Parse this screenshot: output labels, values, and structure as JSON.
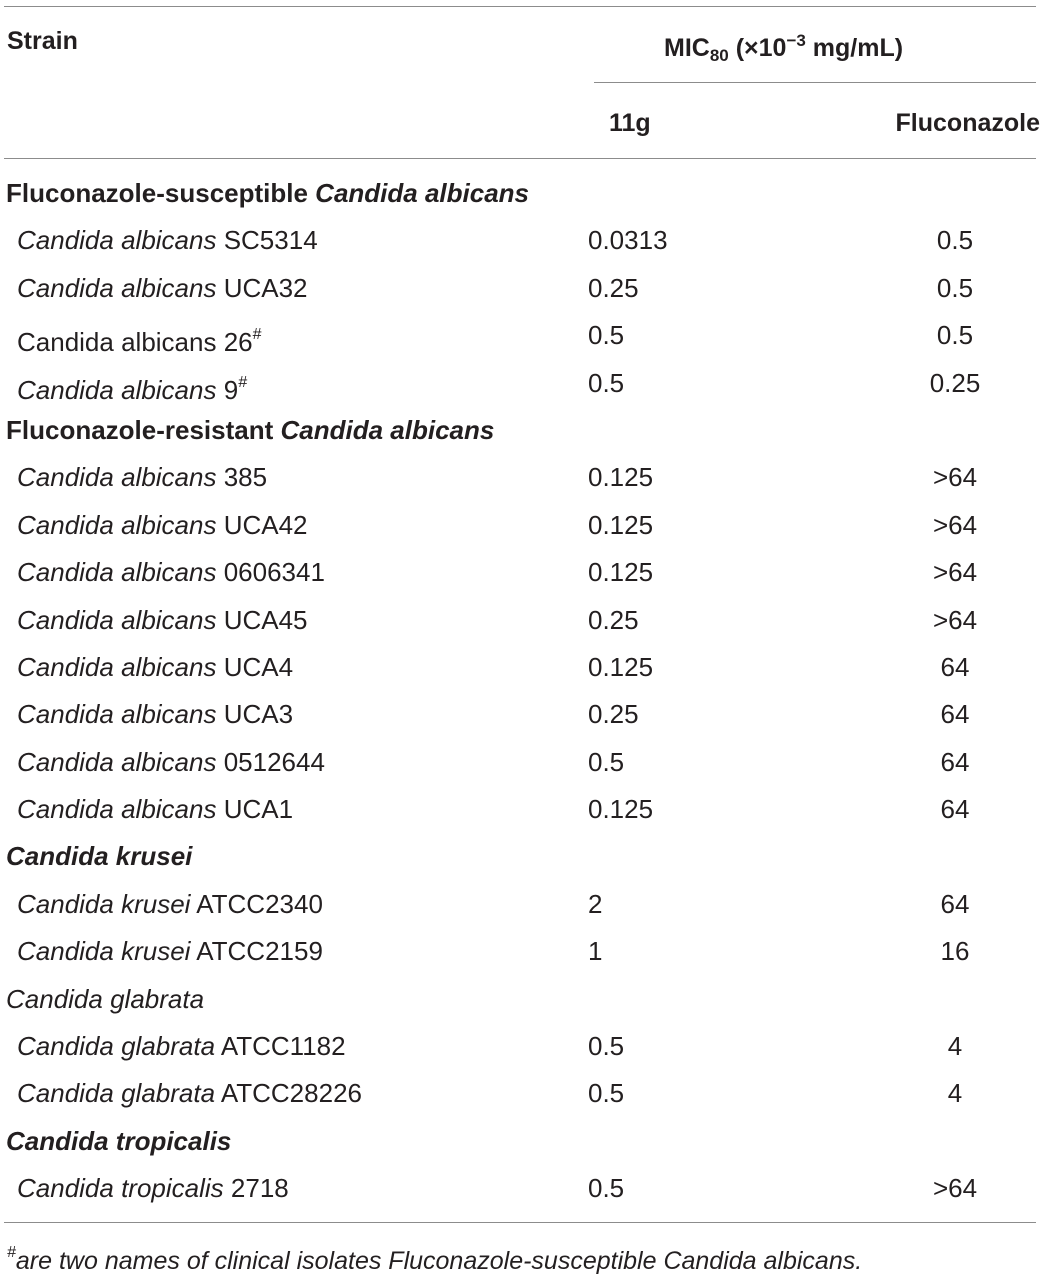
{
  "header": {
    "strain": "Strain",
    "mic_prefix": "MIC",
    "mic_sub": "80",
    "mic_mid": " (×10",
    "mic_sup": "−3",
    "mic_suffix": " mg/mL)",
    "col_11g": "11g",
    "col_fluconazole": "Fluconazole"
  },
  "groups": [
    {
      "label_plain": "Fluconazole-susceptible ",
      "label_italic": "Candida albicans",
      "style": "bold",
      "rows": [
        {
          "genus": "Candida albicans",
          "id": " SC5314",
          "italic": true,
          "mark": "",
          "v11g": "0.0313",
          "vfluc": "0.5"
        },
        {
          "genus": "Candida albicans",
          "id": " UCA32",
          "italic": true,
          "mark": "",
          "v11g": "0.25",
          "vfluc": "0.5"
        },
        {
          "genus": "Candida albicans",
          "id": " 26",
          "italic": false,
          "mark": "#",
          "v11g": "0.5",
          "vfluc": "0.5"
        },
        {
          "genus": "Candida albicans",
          "id": " 9",
          "italic": true,
          "mark": "#",
          "v11g": "0.5",
          "vfluc": "0.25"
        }
      ]
    },
    {
      "label_plain": "Fluconazole-resistant ",
      "label_italic": "Candida albicans",
      "style": "bold",
      "rows": [
        {
          "genus": "Candida albicans",
          "id": " 385",
          "italic": true,
          "mark": "",
          "v11g": "0.125",
          "vfluc": ">64"
        },
        {
          "genus": "Candida albicans",
          "id": " UCA42",
          "italic": true,
          "mark": "",
          "v11g": "0.125",
          "vfluc": ">64"
        },
        {
          "genus": "Candida albicans",
          "id": " 0606341",
          "italic": true,
          "mark": "",
          "v11g": "0.125",
          "vfluc": ">64"
        },
        {
          "genus": "Candida albicans",
          "id": " UCA45",
          "italic": true,
          "mark": "",
          "v11g": "0.25",
          "vfluc": ">64"
        },
        {
          "genus": "Candida albicans",
          "id": " UCA4",
          "italic": true,
          "mark": "",
          "v11g": "0.125",
          "vfluc": "64"
        },
        {
          "genus": "Candida albicans",
          "id": " UCA3",
          "italic": true,
          "mark": "",
          "v11g": "0.25",
          "vfluc": "64"
        },
        {
          "genus": "Candida albicans",
          "id": " 0512644",
          "italic": true,
          "mark": "",
          "v11g": "0.5",
          "vfluc": "64"
        },
        {
          "genus": "Candida albicans",
          "id": " UCA1",
          "italic": true,
          "mark": "",
          "v11g": "0.125",
          "vfluc": "64"
        }
      ]
    },
    {
      "label_plain": "",
      "label_italic": "Candida krusei",
      "style": "bold",
      "rows": [
        {
          "genus": "Candida krusei",
          "id": " ATCC2340",
          "italic": true,
          "mark": "",
          "v11g": "2",
          "vfluc": "64"
        },
        {
          "genus": "Candida krusei",
          "id": " ATCC2159",
          "italic": true,
          "mark": "",
          "v11g": "1",
          "vfluc": "16"
        }
      ]
    },
    {
      "label_plain": "",
      "label_italic": "Candida glabrata",
      "style": "plain-italic",
      "rows": [
        {
          "genus": "Candida glabrata",
          "id": " ATCC1182",
          "italic": true,
          "mark": "",
          "v11g": "0.5",
          "vfluc": "4"
        },
        {
          "genus": "Candida glabrata",
          "id": " ATCC28226",
          "italic": true,
          "mark": "",
          "v11g": "0.5",
          "vfluc": "4"
        }
      ]
    },
    {
      "label_plain": "",
      "label_italic": "Candida tropicalis",
      "style": "bold",
      "rows": [
        {
          "genus": "Candida tropicalis",
          "id": " 2718",
          "italic": true,
          "mark": "",
          "v11g": "0.5",
          "vfluc": ">64"
        }
      ]
    }
  ],
  "footnote": {
    "mark": "#",
    "text": "are two names of clinical isolates Fluconazole-susceptible Candida albicans."
  }
}
